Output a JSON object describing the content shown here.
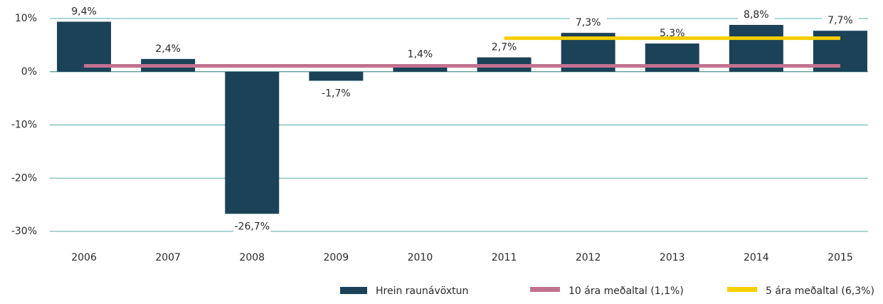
{
  "chart_data": {
    "type": "bar",
    "categories": [
      "2006",
      "2007",
      "2008",
      "2009",
      "2010",
      "2011",
      "2012",
      "2013",
      "2014",
      "2015"
    ],
    "series": [
      {
        "name": "Hrein raunávöxtun",
        "type": "bar",
        "color": "#1b4257",
        "values": [
          9.4,
          2.4,
          -26.7,
          -1.7,
          1.4,
          2.7,
          7.3,
          5.3,
          8.8,
          7.7
        ],
        "value_labels": [
          "9,4%",
          "2,4%",
          "-26,7%",
          "-1,7%",
          "1,4%",
          "2,7%",
          "7,3%",
          "5,3%",
          "8,8%",
          "7,7%"
        ]
      },
      {
        "name": "10 ára meðaltal (1,1%)",
        "type": "line",
        "color": "#c2718f",
        "values": [
          1.1,
          1.1,
          1.1,
          1.1,
          1.1,
          1.1,
          1.1,
          1.1,
          1.1,
          1.1
        ]
      },
      {
        "name": "5 ára meðaltal (6,3%)",
        "type": "line",
        "color": "#f6cf00",
        "values": [
          null,
          null,
          null,
          null,
          null,
          6.3,
          6.3,
          6.3,
          6.3,
          6.3
        ]
      }
    ],
    "ylim": [
      -30,
      10
    ],
    "yticks": [
      {
        "value": -30,
        "label": "-30%"
      },
      {
        "value": -20,
        "label": "-20%"
      },
      {
        "value": -10,
        "label": "-10%"
      },
      {
        "value": 0,
        "label": "0%"
      },
      {
        "value": 10,
        "label": "10%"
      }
    ],
    "grid": true,
    "legend": "bottom-right"
  }
}
